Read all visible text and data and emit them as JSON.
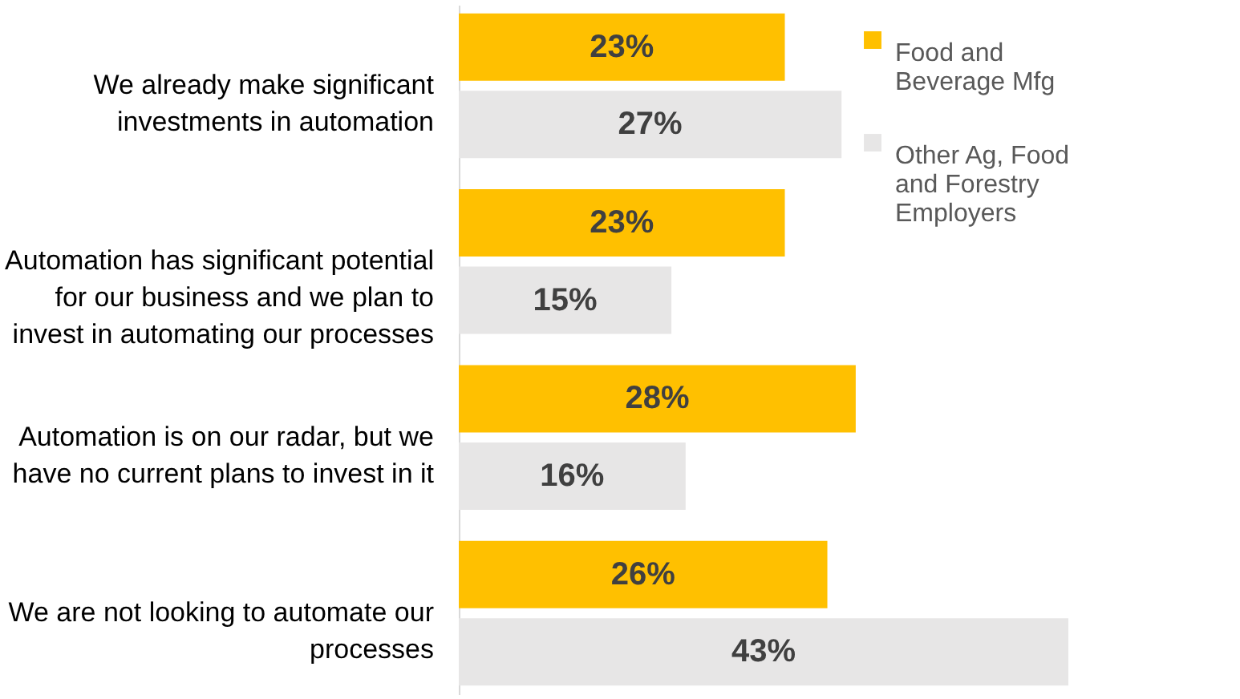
{
  "chart_data": {
    "type": "bar",
    "orientation": "horizontal",
    "legend": "top right",
    "grid": false,
    "categories": [
      "We already make significant investments in automation",
      "Automation has significant potential for our business and we plan to invest in automating our processes",
      "Automation is on our radar, but we have no current plans to invest in it",
      "We are not looking to automate our processes"
    ],
    "series": [
      {
        "name": "Food and Beverage Mfg",
        "color": "#ffc000",
        "values": [
          23,
          23,
          28,
          26
        ],
        "value_labels": [
          "23%",
          "23%",
          "28%",
          "26%"
        ]
      },
      {
        "name": "Other Ag, Food and Forestry Employers",
        "color": "#e7e6e6",
        "values": [
          27,
          15,
          16,
          43
        ],
        "value_labels": [
          "27%",
          "15%",
          "16%",
          "43%"
        ]
      }
    ]
  }
}
